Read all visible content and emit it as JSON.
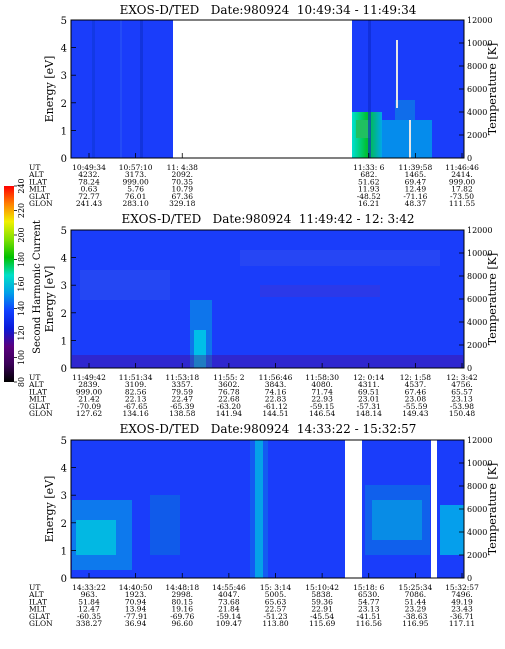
{
  "colorbar": {
    "label": "Second Harmonic Current",
    "ticks": [
      "80",
      "100",
      "120",
      "140",
      "160",
      "180",
      "200",
      "220",
      "240"
    ],
    "range": [
      80,
      240
    ],
    "colors": [
      "#000000",
      "#3a0057",
      "#5a007f",
      "#0a1ad8",
      "#1040ff",
      "#00a0e8",
      "#00e0c8",
      "#00c000",
      "#80e000",
      "#f0f000",
      "#ff8000",
      "#ff0000"
    ]
  },
  "panels": [
    {
      "title": "EXOS-D/TED   Date:980924  10:49:34 - 11:49:34",
      "ylabel_left": "Energy [eV]",
      "ylabel_right": "Temperature [K]",
      "yticks_left": [
        "0",
        "1",
        "2",
        "3",
        "4",
        "5"
      ],
      "yticks_right": [
        "0",
        "2000",
        "4000",
        "6000",
        "8000",
        "10000",
        "12000"
      ],
      "ylim_left": [
        0,
        5
      ],
      "ylim_right": [
        0,
        12000
      ],
      "row_labels": [
        "UT",
        "ALT",
        "ILAT",
        "MLT",
        "GLAT",
        "GLON"
      ],
      "columns": [
        {
          "UT": "10:49:34",
          "ALT": "4232.",
          "ILAT": "78.24",
          "MLT": "0.63",
          "GLAT": "72.77",
          "GLON": "241.43"
        },
        {
          "UT": "10:57:10",
          "ALT": "3173.",
          "ILAT": "999.00",
          "MLT": "5.76",
          "GLAT": "76.01",
          "GLON": "283.10"
        },
        {
          "UT": "11: 4:38",
          "ALT": "2092.",
          "ILAT": "70.35",
          "MLT": "10.79",
          "GLAT": "67.36",
          "GLON": "329.18"
        },
        {
          "UT": "",
          "ALT": "",
          "ILAT": "",
          "MLT": "",
          "GLAT": "",
          "GLON": ""
        },
        {
          "UT": "",
          "ALT": "",
          "ILAT": "",
          "MLT": "",
          "GLAT": "",
          "GLON": ""
        },
        {
          "UT": "",
          "ALT": "",
          "ILAT": "",
          "MLT": "",
          "GLAT": "",
          "GLON": ""
        },
        {
          "UT": "11:33: 6",
          "ALT": "682.",
          "ILAT": "51.62",
          "MLT": "11.93",
          "GLAT": "-48.52",
          "GLON": "16.21"
        },
        {
          "UT": "11:39:58",
          "ALT": "1465.",
          "ILAT": "69.47",
          "MLT": "12.49",
          "GLAT": "-71.16",
          "GLON": "48.37"
        },
        {
          "UT": "11:46:46",
          "ALT": "2414.",
          "ILAT": "999.00",
          "MLT": "17.82",
          "GLAT": "-73.50",
          "GLON": "111.55"
        }
      ]
    },
    {
      "title": "EXOS-D/TED   Date:980924  11:49:42 - 12: 3:42",
      "ylabel_left": "Energy [eV]",
      "ylabel_right": "Temperature [K]",
      "yticks_left": [
        "0",
        "1",
        "2",
        "3",
        "4",
        "5"
      ],
      "yticks_right": [
        "0",
        "2000",
        "4000",
        "6000",
        "8000",
        "10000",
        "12000"
      ],
      "ylim_left": [
        0,
        5
      ],
      "ylim_right": [
        0,
        12000
      ],
      "row_labels": [
        "UT",
        "ALT",
        "ILAT",
        "MLT",
        "GLAT",
        "GLON"
      ],
      "columns": [
        {
          "UT": "11:49:42",
          "ALT": "2839.",
          "ILAT": "999.00",
          "MLT": "21.42",
          "GLAT": "-70.09",
          "GLON": "127.62"
        },
        {
          "UT": "11:51:34",
          "ALT": "3109.",
          "ILAT": "82.56",
          "MLT": "22.13",
          "GLAT": "-67.65",
          "GLON": "134.16"
        },
        {
          "UT": "11:53:18",
          "ALT": "3357.",
          "ILAT": "79.59",
          "MLT": "22.47",
          "GLAT": "-65.39",
          "GLON": "138.58"
        },
        {
          "UT": "11:55: 2",
          "ALT": "3602.",
          "ILAT": "76.78",
          "MLT": "22.68",
          "GLAT": "-63.20",
          "GLON": "141.94"
        },
        {
          "UT": "11:56:46",
          "ALT": "3843.",
          "ILAT": "74.16",
          "MLT": "22.83",
          "GLAT": "-61.12",
          "GLON": "144.51"
        },
        {
          "UT": "11:58:30",
          "ALT": "4080.",
          "ILAT": "71.74",
          "MLT": "22.93",
          "GLAT": "-59.15",
          "GLON": "146.54"
        },
        {
          "UT": "12: 0:14",
          "ALT": "4311.",
          "ILAT": "69.51",
          "MLT": "23.01",
          "GLAT": "-57.31",
          "GLON": "148.14"
        },
        {
          "UT": "12: 1:58",
          "ALT": "4537.",
          "ILAT": "67.46",
          "MLT": "23.08",
          "GLAT": "-55.59",
          "GLON": "149.43"
        },
        {
          "UT": "12: 3:42",
          "ALT": "4756.",
          "ILAT": "65.57",
          "MLT": "23.13",
          "GLAT": "-53.98",
          "GLON": "150.48"
        }
      ]
    },
    {
      "title": "EXOS-D/TED   Date:980924  14:33:22 - 15:32:57",
      "ylabel_left": "Energy [eV]",
      "ylabel_right": "Temperature [K]",
      "yticks_left": [
        "0",
        "1",
        "2",
        "3",
        "4",
        "5"
      ],
      "yticks_right": [
        "0",
        "2000",
        "4000",
        "6000",
        "8000",
        "10000",
        "12000"
      ],
      "ylim_left": [
        0,
        5
      ],
      "ylim_right": [
        0,
        12000
      ],
      "row_labels": [
        "UT",
        "ALT",
        "ILAT",
        "MLT",
        "GLAT",
        "GLON"
      ],
      "columns": [
        {
          "UT": "14:33:22",
          "ALT": "963.",
          "ILAT": "51.84",
          "MLT": "12.47",
          "GLAT": "-60.35",
          "GLON": "338.27"
        },
        {
          "UT": "14:40:50",
          "ALT": "1923.",
          "ILAT": "70.94",
          "MLT": "13.94",
          "GLAT": "-77.91",
          "GLON": "36.94"
        },
        {
          "UT": "14:48:18",
          "ALT": "2998.",
          "ILAT": "80.15",
          "MLT": "19.16",
          "GLAT": "-69.76",
          "GLON": "96.60"
        },
        {
          "UT": "14:55:46",
          "ALT": "4047.",
          "ILAT": "73.68",
          "MLT": "21.84",
          "GLAT": "-59.14",
          "GLON": "109.47"
        },
        {
          "UT": "15: 3:14",
          "ALT": "5005.",
          "ILAT": "65.63",
          "MLT": "22.57",
          "GLAT": "-51.23",
          "GLON": "113.80"
        },
        {
          "UT": "15:10:42",
          "ALT": "5838.",
          "ILAT": "59.36",
          "MLT": "22.91",
          "GLAT": "-45.54",
          "GLON": "115.69"
        },
        {
          "UT": "15:18: 6",
          "ALT": "6530.",
          "ILAT": "54.77",
          "MLT": "23.13",
          "GLAT": "-41.51",
          "GLON": "116.56"
        },
        {
          "UT": "15:25:34",
          "ALT": "7086.",
          "ILAT": "51.44",
          "MLT": "23.29",
          "GLAT": "-38.63",
          "GLON": "116.95"
        },
        {
          "UT": "15:32:57",
          "ALT": "7496.",
          "ILAT": "49.19",
          "MLT": "23.43",
          "GLAT": "-36.71",
          "GLON": "117.11"
        }
      ]
    }
  ],
  "chart_data": [
    {
      "type": "heatmap",
      "title": "EXOS-D/TED   Date:980924  10:49:34 - 11:49:34",
      "ylabel": "Energy [eV]",
      "ylabel_right": "Temperature [K]",
      "ylim": [
        0,
        5
      ],
      "ylim_right": [
        0,
        12000
      ],
      "x_ticks": [
        "10:49:34",
        "10:57:10",
        "11: 4:38",
        "11:33: 6",
        "11:39:58",
        "11:46:46"
      ],
      "data_gaps": [
        "11:12 - 11:32"
      ]
    },
    {
      "type": "heatmap",
      "title": "EXOS-D/TED   Date:980924  11:49:42 - 12: 3:42",
      "ylabel": "Energy [eV]",
      "ylabel_right": "Temperature [K]",
      "ylim": [
        0,
        5
      ],
      "ylim_right": [
        0,
        12000
      ],
      "x_ticks": [
        "11:49:42",
        "11:51:34",
        "11:53:18",
        "11:55: 2",
        "11:56:46",
        "11:58:30",
        "12: 0:14",
        "12: 1:58",
        "12: 3:42"
      ]
    },
    {
      "type": "heatmap",
      "title": "EXOS-D/TED   Date:980924  14:33:22 - 15:32:57",
      "ylabel": "Energy [eV]",
      "ylabel_right": "Temperature [K]",
      "ylim": [
        0,
        5
      ],
      "ylim_right": [
        0,
        12000
      ],
      "x_ticks": [
        "14:33:22",
        "14:40:50",
        "14:48:18",
        "14:55:46",
        "15: 3:14",
        "15:10:42",
        "15:18: 6",
        "15:25:34",
        "15:32:57"
      ]
    }
  ]
}
